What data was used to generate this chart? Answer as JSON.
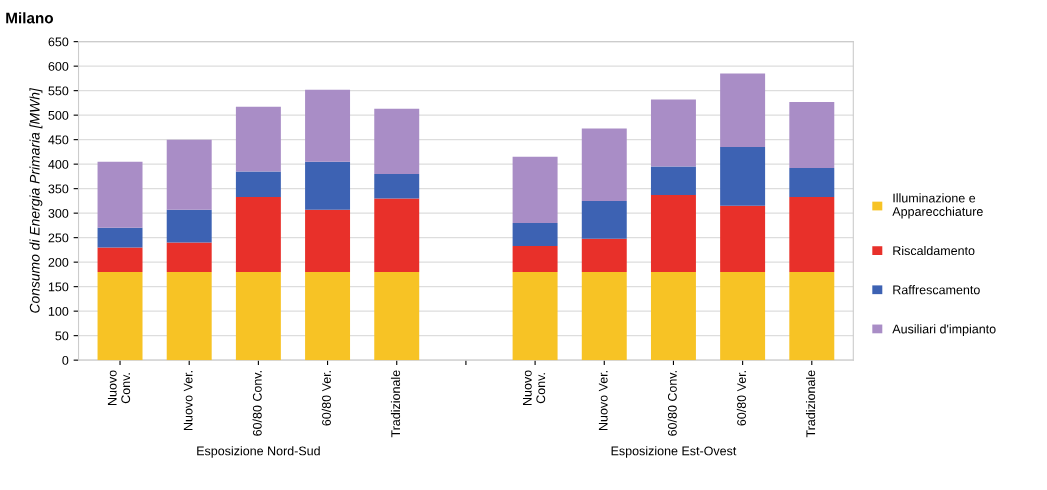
{
  "chart_data": {
    "type": "bar",
    "title": "Milano",
    "ylabel": "Consumo di Energia Primaria [MWh]",
    "categories": [
      "Nuovo\nConv.",
      "Nuovo Ver.",
      "60/80 Conv.",
      "60/80 Ver.",
      "Tradizionale",
      null,
      "Nuovo\nConv.",
      "Nuovo Ver.",
      "60/80 Conv.",
      "60/80 Ver.",
      "Tradizionale"
    ],
    "series": [
      {
        "name": "Illuminazione e\nApparecchiature",
        "color": "#f7c325",
        "values": [
          180,
          180,
          180,
          180,
          180,
          null,
          180,
          180,
          180,
          180,
          180
        ]
      },
      {
        "name": "Riscaldamento",
        "color": "#e8302a",
        "values": [
          50,
          60,
          153,
          127,
          150,
          null,
          53,
          68,
          157,
          135,
          153
        ]
      },
      {
        "name": "Raffrescamento",
        "color": "#3d62b3",
        "values": [
          40,
          67,
          52,
          98,
          50,
          null,
          47,
          77,
          58,
          120,
          59
        ]
      },
      {
        "name": "Ausiliari d'impianto",
        "color": "#a98dc6",
        "values": [
          135,
          143,
          132,
          147,
          133,
          null,
          135,
          148,
          137,
          150,
          135
        ]
      }
    ],
    "stacked": true,
    "ylim": [
      0,
      650
    ],
    "yticks": [
      0,
      50,
      100,
      150,
      200,
      250,
      300,
      350,
      400,
      450,
      500,
      550,
      600,
      650
    ],
    "grid": "y",
    "legend": "right",
    "annotations": [
      "Esposizione Nord-Sud",
      "Esposizione Est-Ovest"
    ]
  }
}
